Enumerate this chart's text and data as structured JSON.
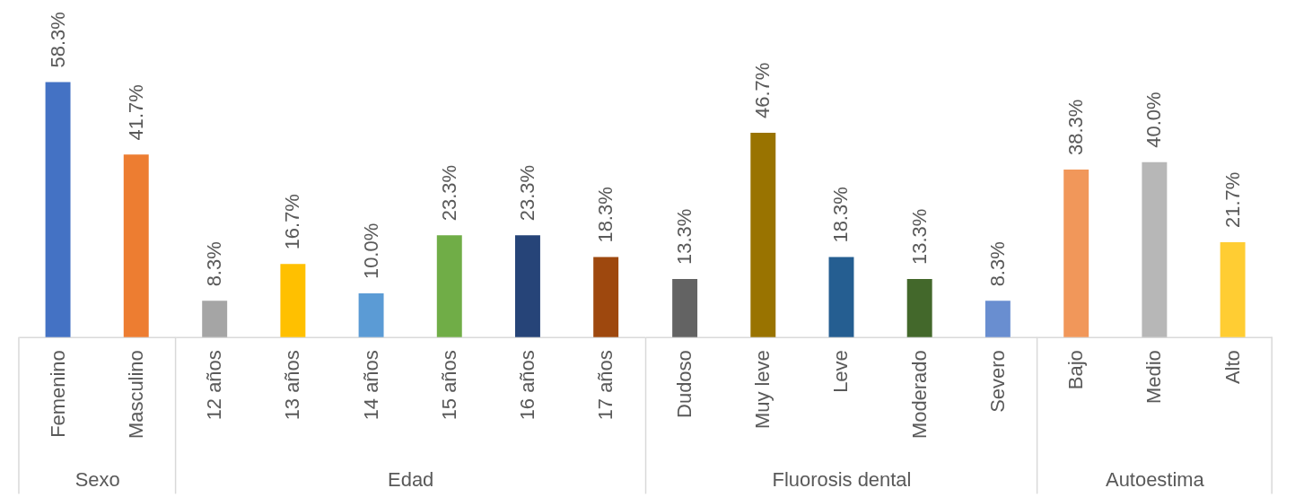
{
  "chart_data": [
    {
      "type": "bar",
      "xlabel": "Sexo",
      "categories": [
        "Femenino",
        "Masculino"
      ],
      "values": [
        58.3,
        41.7
      ],
      "colors": [
        "#4472c4",
        "#ed7d31"
      ],
      "value_labels": [
        "58.3%",
        "41.7%"
      ],
      "tick_labels": "x"
    },
    {
      "type": "bar",
      "xlabel": "Edad",
      "categories": [
        "12 años",
        "13 años",
        "14 años",
        "15 años",
        "16 años",
        "17 años"
      ],
      "values": [
        8.3,
        16.7,
        10.0,
        23.3,
        23.3,
        18.3
      ],
      "colors": [
        "#a5a5a5",
        "#ffc000",
        "#5b9bd5",
        "#70ad47",
        "#264478",
        "#9e480e"
      ],
      "value_labels": [
        "8.3%",
        "16.7%",
        "10.0%",
        "23.3%",
        "23.3%",
        "18.3%"
      ],
      "tick_labels": "x"
    },
    {
      "type": "bar",
      "xlabel": "Fluorosis dental",
      "categories": [
        "Dudoso",
        "Muy leve",
        "Leve",
        "Moderado",
        "Severo"
      ],
      "values": [
        13.3,
        46.7,
        18.3,
        13.3,
        8.3
      ],
      "colors": [
        "#636363",
        "#997300",
        "#255e91",
        "#43682b",
        "#698ed0"
      ],
      "value_labels": [
        "13.3%",
        "46.7%",
        "18.3%",
        "13.3%",
        "8.3%"
      ],
      "tick_labels": "x"
    },
    {
      "type": "bar",
      "xlabel": "Autoestima",
      "categories": [
        "Bajo",
        "Medio",
        "Alto"
      ],
      "values": [
        38.3,
        40.0,
        21.7
      ],
      "colors": [
        "#f1975a",
        "#b7b7b7",
        "#ffcd33"
      ],
      "value_labels": [
        "38.3%",
        "40.0%",
        "21.7%"
      ],
      "tick_labels": "x"
    }
  ]
}
